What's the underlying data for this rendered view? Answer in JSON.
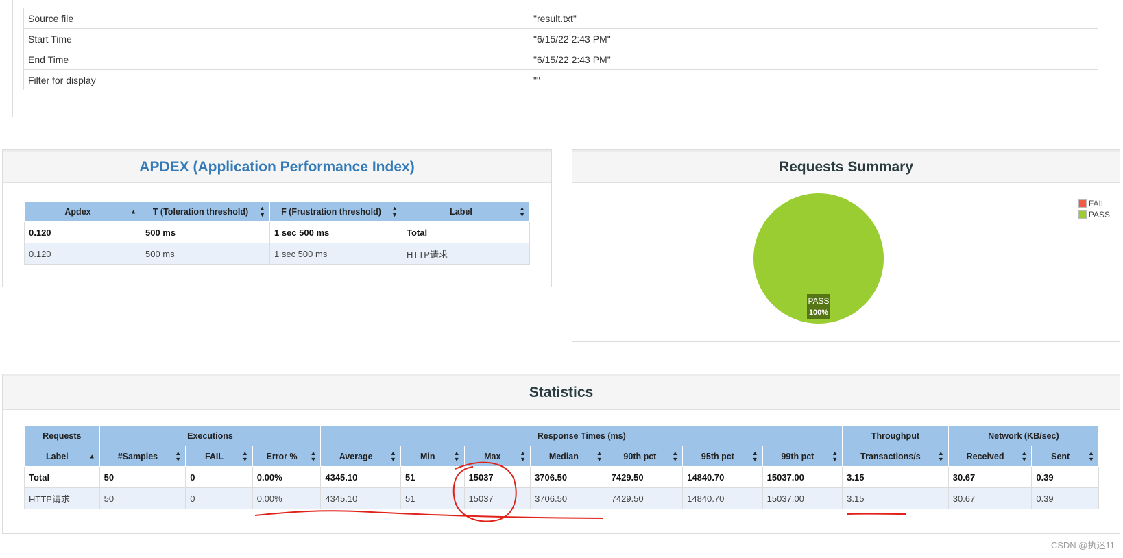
{
  "info": {
    "rows": [
      {
        "key": "Source file",
        "value": "\"result.txt\""
      },
      {
        "key": "Start Time",
        "value": "\"6/15/22 2:43 PM\""
      },
      {
        "key": "End Time",
        "value": "\"6/15/22 2:43 PM\""
      },
      {
        "key": "Filter for display",
        "value": "\"\""
      }
    ]
  },
  "apdex": {
    "title": "APDEX (Application Performance Index)",
    "headers": [
      "Apdex",
      "T (Toleration threshold)",
      "F (Frustration threshold)",
      "Label"
    ],
    "rows": [
      {
        "apdex": "0.120",
        "t": "500 ms",
        "f": "1 sec 500 ms",
        "label": "Total"
      },
      {
        "apdex": "0.120",
        "t": "500 ms",
        "f": "1 sec 500 ms",
        "label": "HTTP请求"
      }
    ]
  },
  "summary": {
    "title": "Requests Summary",
    "legend": [
      {
        "name": "FAIL",
        "color": "#f05b48"
      },
      {
        "name": "PASS",
        "color": "#9acd32"
      }
    ],
    "slice_label": "PASS",
    "slice_percent": "100%",
    "chart_data": {
      "type": "pie",
      "title": "Requests Summary",
      "categories": [
        "FAIL",
        "PASS"
      ],
      "values": [
        0,
        100
      ],
      "colors": [
        "#f05b48",
        "#9acd32"
      ],
      "legend": "top-right"
    }
  },
  "stats": {
    "title": "Statistics",
    "groups": [
      {
        "label": "Requests",
        "span": 1
      },
      {
        "label": "Executions",
        "span": 3
      },
      {
        "label": "Response Times (ms)",
        "span": 7
      },
      {
        "label": "Throughput",
        "span": 1
      },
      {
        "label": "Network (KB/sec)",
        "span": 2
      }
    ],
    "columns": [
      "Label",
      "#Samples",
      "FAIL",
      "Error %",
      "Average",
      "Min",
      "Max",
      "Median",
      "90th pct",
      "95th pct",
      "99th pct",
      "Transactions/s",
      "Received",
      "Sent"
    ],
    "rows": [
      [
        "Total",
        "50",
        "0",
        "0.00%",
        "4345.10",
        "51",
        "15037",
        "3706.50",
        "7429.50",
        "14840.70",
        "15037.00",
        "3.15",
        "30.67",
        "0.39"
      ],
      [
        "HTTP请求",
        "50",
        "0",
        "0.00%",
        "4345.10",
        "51",
        "15037",
        "3706.50",
        "7429.50",
        "14840.70",
        "15037.00",
        "3.15",
        "30.67",
        "0.39"
      ]
    ]
  },
  "watermark": "CSDN @执迷11",
  "annotation_color": "#e0221b"
}
